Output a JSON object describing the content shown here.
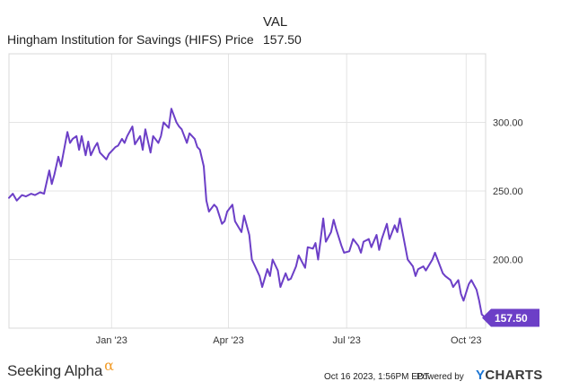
{
  "header": {
    "column_label": "VAL",
    "series_name": "Hingham Institution for Savings (HIFS) Price",
    "series_value": "157.50"
  },
  "footer": {
    "brand": "Seeking Alpha",
    "brand_mark": "α",
    "timestamp": "Oct 16 2023, 1:56PM EDT.",
    "powered_by": "Powered by",
    "ycharts_y": "Y",
    "ycharts_rest": "CHARTS"
  },
  "colors": {
    "line": "#6c3fc7",
    "grid": "#e4e4e4",
    "frame": "#d8d8d8"
  },
  "chart_data": {
    "type": "line",
    "title": "",
    "xlabel": "",
    "ylabel": "",
    "x_tick_labels": [
      "Jan '23",
      "Apr '23",
      "Jul '23",
      "Oct '23"
    ],
    "x_tick_dates": [
      "2023-01-01",
      "2023-04-01",
      "2023-07-01",
      "2023-10-01"
    ],
    "y_ticks": [
      200,
      250,
      300
    ],
    "y_tick_labels": [
      "200.00",
      "250.00",
      "300.00"
    ],
    "ylim": [
      150,
      350
    ],
    "xlim": [
      "2022-10-14",
      "2023-10-16"
    ],
    "last_value_label": "157.50",
    "series": [
      {
        "name": "Hingham Institution for Savings (HIFS) Price",
        "x": [
          "2022-10-14",
          "2022-10-17",
          "2022-10-20",
          "2022-10-24",
          "2022-10-27",
          "2022-10-31",
          "2022-11-03",
          "2022-11-07",
          "2022-11-10",
          "2022-11-14",
          "2022-11-16",
          "2022-11-18",
          "2022-11-21",
          "2022-11-23",
          "2022-11-28",
          "2022-11-30",
          "2022-12-02",
          "2022-12-05",
          "2022-12-07",
          "2022-12-09",
          "2022-12-12",
          "2022-12-14",
          "2022-12-16",
          "2022-12-19",
          "2022-12-21",
          "2022-12-23",
          "2022-12-28",
          "2022-12-30",
          "2023-01-04",
          "2023-01-06",
          "2023-01-09",
          "2023-01-11",
          "2023-01-13",
          "2023-01-17",
          "2023-01-19",
          "2023-01-23",
          "2023-01-25",
          "2023-01-27",
          "2023-01-31",
          "2023-02-02",
          "2023-02-06",
          "2023-02-08",
          "2023-02-10",
          "2023-02-14",
          "2023-02-16",
          "2023-02-20",
          "2023-02-22",
          "2023-02-24",
          "2023-02-28",
          "2023-03-02",
          "2023-03-06",
          "2023-03-08",
          "2023-03-10",
          "2023-03-13",
          "2023-03-15",
          "2023-03-17",
          "2023-03-21",
          "2023-03-23",
          "2023-03-27",
          "2023-03-29",
          "2023-03-31",
          "2023-04-04",
          "2023-04-06",
          "2023-04-11",
          "2023-04-13",
          "2023-04-17",
          "2023-04-19",
          "2023-04-21",
          "2023-04-25",
          "2023-04-27",
          "2023-05-01",
          "2023-05-03",
          "2023-05-05",
          "2023-05-09",
          "2023-05-11",
          "2023-05-15",
          "2023-05-17",
          "2023-05-19",
          "2023-05-23",
          "2023-05-25",
          "2023-05-30",
          "2023-06-01",
          "2023-06-05",
          "2023-06-07",
          "2023-06-09",
          "2023-06-13",
          "2023-06-15",
          "2023-06-19",
          "2023-06-21",
          "2023-06-23",
          "2023-06-27",
          "2023-06-29",
          "2023-07-03",
          "2023-07-06",
          "2023-07-10",
          "2023-07-12",
          "2023-07-14",
          "2023-07-18",
          "2023-07-20",
          "2023-07-24",
          "2023-07-26",
          "2023-07-28",
          "2023-08-01",
          "2023-08-03",
          "2023-08-07",
          "2023-08-09",
          "2023-08-11",
          "2023-08-15",
          "2023-08-17",
          "2023-08-21",
          "2023-08-23",
          "2023-08-25",
          "2023-08-29",
          "2023-08-31",
          "2023-09-05",
          "2023-09-07",
          "2023-09-11",
          "2023-09-13",
          "2023-09-15",
          "2023-09-19",
          "2023-09-21",
          "2023-09-25",
          "2023-09-27",
          "2023-09-29",
          "2023-10-03",
          "2023-10-05",
          "2023-10-09",
          "2023-10-11",
          "2023-10-13",
          "2023-10-16"
        ],
        "y": [
          245,
          248,
          243,
          247,
          246,
          248,
          247,
          249,
          248,
          265,
          255,
          262,
          275,
          268,
          293,
          285,
          288,
          290,
          280,
          290,
          276,
          286,
          276,
          282,
          285,
          278,
          273,
          277,
          282,
          283,
          288,
          285,
          290,
          297,
          284,
          290,
          280,
          295,
          278,
          290,
          285,
          290,
          300,
          296,
          310,
          300,
          297,
          295,
          285,
          292,
          288,
          282,
          280,
          268,
          243,
          235,
          240,
          238,
          226,
          228,
          235,
          240,
          228,
          220,
          232,
          218,
          200,
          196,
          188,
          180,
          193,
          188,
          200,
          192,
          180,
          190,
          185,
          186,
          195,
          203,
          194,
          209,
          208,
          212,
          200,
          230,
          213,
          220,
          229,
          222,
          210,
          205,
          206,
          215,
          210,
          205,
          213,
          215,
          209,
          218,
          207,
          215,
          226,
          215,
          225,
          220,
          230,
          210,
          200,
          195,
          188,
          193,
          195,
          192,
          200,
          205,
          195,
          190,
          188,
          185,
          180,
          185,
          175,
          170,
          182,
          185,
          178,
          170,
          160,
          157.5
        ]
      }
    ]
  }
}
